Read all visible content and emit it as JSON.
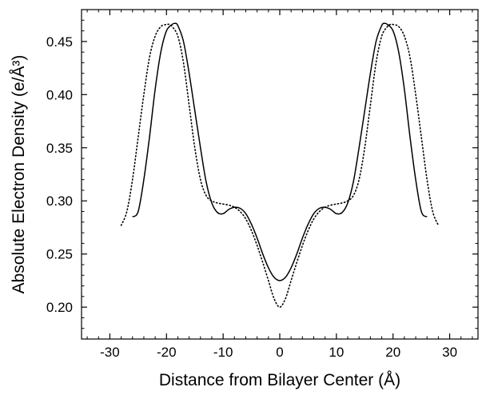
{
  "chart_data": {
    "type": "line",
    "xlabel": "Distance from Bilayer Center (Å)",
    "ylabel": "Absolute Electron Density (e/Å³)",
    "xlim": [
      -35,
      35
    ],
    "ylim": [
      0.17,
      0.48
    ],
    "xticks": [
      -30,
      -20,
      -10,
      0,
      10,
      20,
      30
    ],
    "yticks": [
      0.2,
      0.25,
      0.3,
      0.35,
      0.4,
      0.45
    ],
    "ytick_labels": [
      "0.20",
      "0.25",
      "0.30",
      "0.35",
      "0.40",
      "0.45"
    ],
    "legend": "none",
    "grid": false,
    "series": [
      {
        "style": "solid",
        "color": "#000000",
        "x": [
          -26,
          -25,
          -24,
          -23,
          -22,
          -21,
          -20,
          -19,
          -18.5,
          -18,
          -17,
          -16,
          -15,
          -14,
          -13,
          -12,
          -11,
          -10,
          -9,
          -8,
          -7,
          -6,
          -5,
          -4,
          -3,
          -2,
          -1,
          0,
          1,
          2,
          3,
          4,
          5,
          6,
          7,
          8,
          9,
          10,
          11,
          12,
          13,
          14,
          15,
          16,
          17,
          18,
          18.5,
          19,
          20,
          21,
          22,
          23,
          24,
          25,
          26
        ],
        "y": [
          0.285,
          0.29,
          0.32,
          0.36,
          0.405,
          0.44,
          0.46,
          0.466,
          0.467,
          0.465,
          0.45,
          0.42,
          0.385,
          0.35,
          0.318,
          0.298,
          0.289,
          0.288,
          0.292,
          0.294,
          0.293,
          0.288,
          0.278,
          0.265,
          0.25,
          0.237,
          0.228,
          0.225,
          0.228,
          0.237,
          0.25,
          0.265,
          0.278,
          0.288,
          0.293,
          0.294,
          0.292,
          0.288,
          0.289,
          0.298,
          0.318,
          0.35,
          0.385,
          0.42,
          0.45,
          0.465,
          0.467,
          0.466,
          0.46,
          0.44,
          0.405,
          0.36,
          0.32,
          0.29,
          0.285
        ]
      },
      {
        "style": "dotted",
        "color": "#000000",
        "x": [
          -28,
          -27,
          -26,
          -25,
          -24,
          -23,
          -22,
          -21,
          -20,
          -19.5,
          -19,
          -18,
          -17,
          -16,
          -15,
          -14,
          -13,
          -12,
          -11,
          -10,
          -9,
          -8,
          -7,
          -6,
          -5,
          -4,
          -3,
          -2,
          -1,
          0,
          1,
          2,
          3,
          4,
          5,
          6,
          7,
          8,
          9,
          10,
          11,
          12,
          13,
          14,
          15,
          16,
          17,
          18,
          19,
          19.5,
          20,
          21,
          22,
          23,
          24,
          25,
          26,
          27,
          28
        ],
        "y": [
          0.277,
          0.29,
          0.32,
          0.36,
          0.4,
          0.435,
          0.455,
          0.464,
          0.466,
          0.466,
          0.464,
          0.455,
          0.43,
          0.39,
          0.35,
          0.32,
          0.305,
          0.3,
          0.298,
          0.297,
          0.296,
          0.294,
          0.29,
          0.283,
          0.272,
          0.258,
          0.242,
          0.225,
          0.208,
          0.2,
          0.208,
          0.225,
          0.242,
          0.258,
          0.272,
          0.283,
          0.29,
          0.294,
          0.296,
          0.297,
          0.298,
          0.3,
          0.305,
          0.32,
          0.35,
          0.39,
          0.43,
          0.455,
          0.464,
          0.466,
          0.466,
          0.464,
          0.455,
          0.435,
          0.4,
          0.36,
          0.32,
          0.29,
          0.277
        ]
      }
    ]
  }
}
